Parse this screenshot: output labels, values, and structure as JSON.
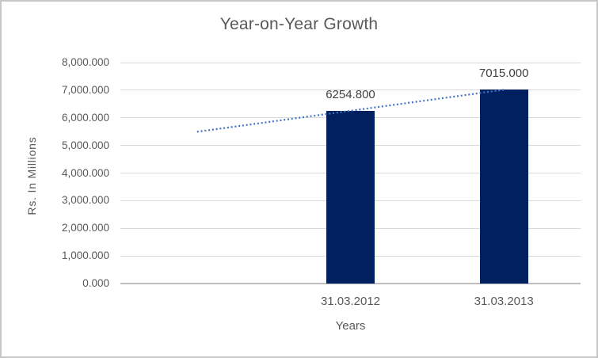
{
  "chart_data": {
    "type": "bar",
    "title": "Year-on-Year Growth",
    "xlabel": "Years",
    "ylabel": "Rs. In Millions",
    "categories": [
      "31.03.2012",
      "31.03.2013"
    ],
    "values": [
      6254.8,
      7015.0
    ],
    "data_labels": [
      "6254.800",
      "7015.000"
    ],
    "ylim": [
      0,
      8000
    ],
    "y_ticks": [
      "8,000.000",
      "7,000.000",
      "6,000.000",
      "5,000.000",
      "4,000.000",
      "3,000.000",
      "2,000.000",
      "1,000.000",
      "0.000"
    ],
    "grid": true,
    "legend": false,
    "series": [
      {
        "name": "value-bars",
        "render": "bar",
        "values": [
          6254.8,
          7015.0
        ]
      },
      {
        "name": "linear-trendline",
        "render": "dotted-line",
        "extrapolated_start_value": 5494.6,
        "end_value": 7015.0
      }
    ],
    "colors": {
      "bar": "#002060",
      "trendline": "#4472c4",
      "gridline": "#d9d9d9",
      "axis_line": "#bfbfbf",
      "text": "#595959",
      "data_label_text": "#3f3f3f",
      "frame_border": "#c7c7c7",
      "background": "#ffffff"
    }
  }
}
